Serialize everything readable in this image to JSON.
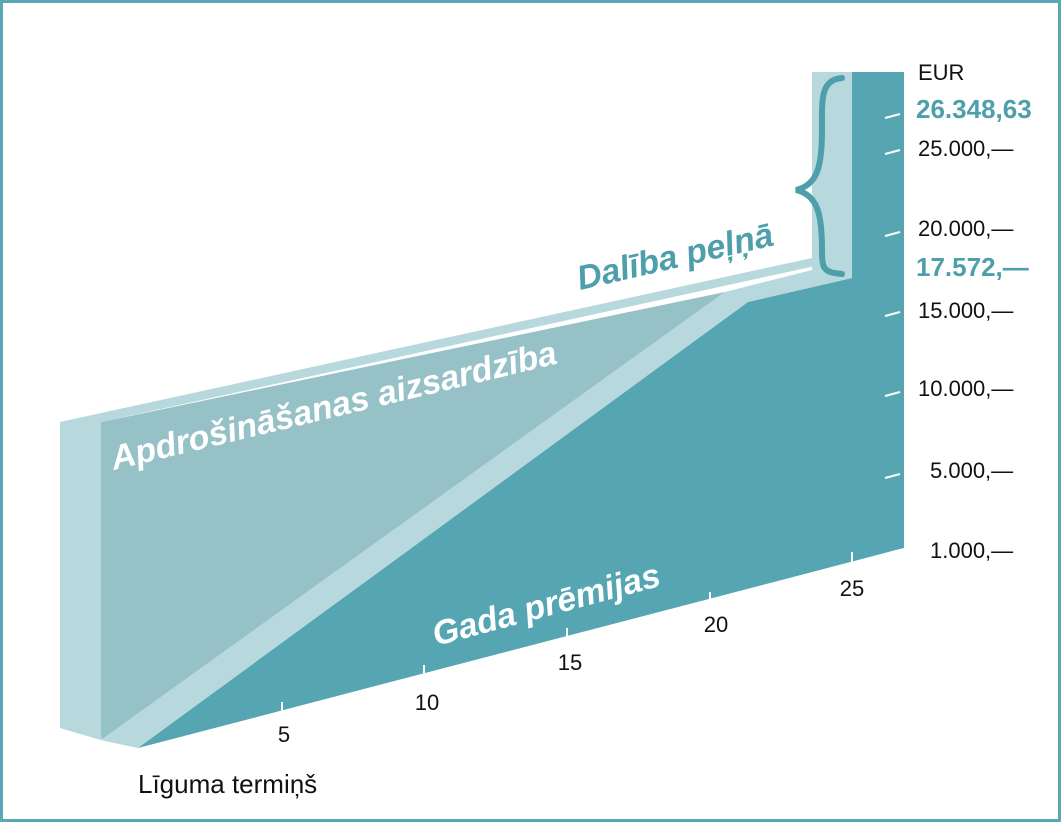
{
  "chart_data": {
    "type": "area",
    "unit_label": "EUR",
    "xlabel": "Līguma termiņš",
    "x_ticks": [
      "5",
      "10",
      "15",
      "20",
      "25"
    ],
    "y_ticks": [
      "1.000,—",
      "5.000,—",
      "10.000,—",
      "15.000,—",
      "20.000,—",
      "25.000,—"
    ],
    "highlight_values": {
      "total_label": "26.348,63",
      "guaranteed_label": "17.572,—",
      "total": 26348.63,
      "guaranteed": 17572
    },
    "series": [
      {
        "name": "Gada prēmijas"
      },
      {
        "name": "Apdrošināšanas aizsardzība"
      },
      {
        "name": "Dalība peļņā"
      }
    ],
    "colors": {
      "premiums": "#55a6b2",
      "protection": "#96c1c7",
      "light_face": "#b7d8dc",
      "accent": "#4e9fab"
    }
  }
}
